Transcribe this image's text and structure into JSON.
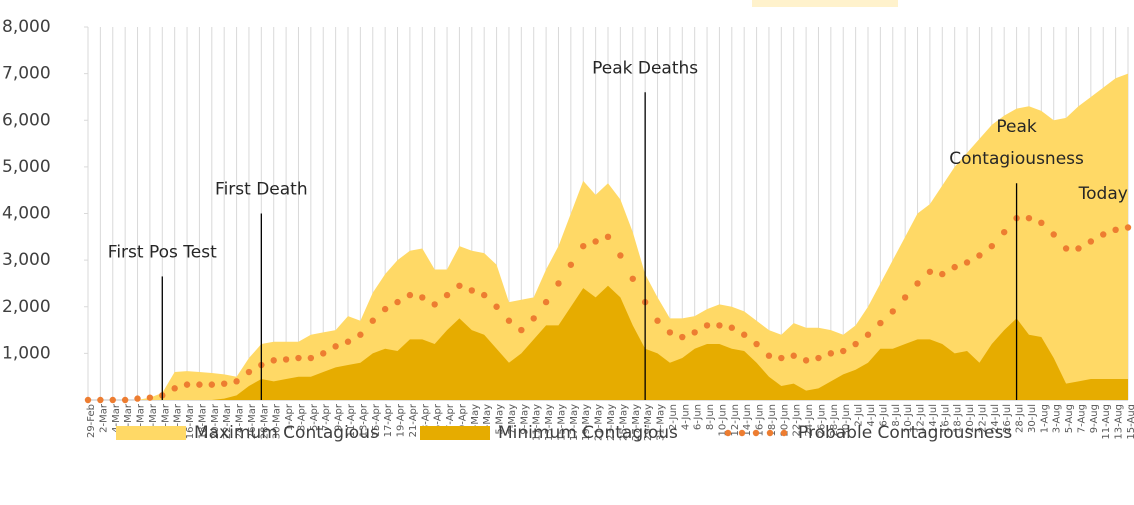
{
  "chart_data": {
    "type": "area",
    "categories": [
      "29-Feb",
      "2-Mar",
      "4-Mar",
      "6-Mar",
      "8-Mar",
      "10-Mar",
      "12-Mar",
      "14-Mar",
      "16-Mar",
      "18-Mar",
      "20-Mar",
      "22-Mar",
      "24-Mar",
      "26-Mar",
      "28-Mar",
      "30-Mar",
      "1-Apr",
      "3-Apr",
      "5-Apr",
      "7-Apr",
      "9-Apr",
      "11-Apr",
      "13-Apr",
      "15-Apr",
      "17-Apr",
      "19-Apr",
      "21-Apr",
      "23-Apr",
      "25-Apr",
      "27-Apr",
      "29-Apr",
      "1-May",
      "3-May",
      "5-May",
      "7-May",
      "9-May",
      "11-May",
      "13-May",
      "15-May",
      "17-May",
      "19-May",
      "21-May",
      "23-May",
      "25-May",
      "27-May",
      "29-May",
      "31-May",
      "2-Jun",
      "4-Jun",
      "6-Jun",
      "8-Jun",
      "10-Jun",
      "12-Jun",
      "14-Jun",
      "16-Jun",
      "18-Jun",
      "20-Jun",
      "22-Jun",
      "24-Jun",
      "26-Jun",
      "28-Jun",
      "30-Jun",
      "2-Jul",
      "4-Jul",
      "6-Jul",
      "8-Jul",
      "10-Jul",
      "12-Jul",
      "14-Jul",
      "16-Jul",
      "18-Jul",
      "20-Jul",
      "22-Jul",
      "24-Jul",
      "26-Jul",
      "28-Jul",
      "30-Jul",
      "1-Aug",
      "3-Aug",
      "5-Aug",
      "7-Aug",
      "9-Aug",
      "11-Aug",
      "13-Aug",
      "15-Aug"
    ],
    "series": [
      {
        "name": "Maximum Contagious",
        "style": "area",
        "color": "#ffd966",
        "values": [
          0,
          0,
          0,
          0,
          0,
          50,
          150,
          600,
          620,
          600,
          580,
          550,
          500,
          900,
          1200,
          1250,
          1250,
          1250,
          1400,
          1450,
          1500,
          1800,
          1700,
          2300,
          2700,
          3000,
          3200,
          3250,
          2800,
          2800,
          3300,
          3200,
          3150,
          2900,
          2100,
          2150,
          2200,
          2800,
          3300,
          4000,
          4700,
          4400,
          4650,
          4300,
          3600,
          2700,
          2200,
          1750,
          1750,
          1800,
          1950,
          2050,
          2000,
          1900,
          1700,
          1500,
          1400,
          1650,
          1550,
          1550,
          1500,
          1400,
          1600,
          2000,
          2500,
          3000,
          3500,
          4000,
          4200,
          4600,
          5000,
          5300,
          5600,
          5900,
          6100,
          6250,
          6300,
          6200,
          6000,
          6050,
          6300,
          6500,
          6700,
          6900,
          7000
        ]
      },
      {
        "name": "Minimum Contagious",
        "style": "area",
        "color": "#e6ac00",
        "values": [
          0,
          0,
          0,
          0,
          0,
          0,
          0,
          0,
          0,
          0,
          0,
          30,
          100,
          300,
          450,
          400,
          450,
          500,
          500,
          600,
          700,
          750,
          800,
          1000,
          1100,
          1050,
          1300,
          1300,
          1200,
          1500,
          1750,
          1500,
          1400,
          1100,
          800,
          1000,
          1300,
          1600,
          1600,
          2000,
          2400,
          2200,
          2450,
          2200,
          1600,
          1100,
          1000,
          800,
          900,
          1100,
          1200,
          1200,
          1100,
          1050,
          800,
          500,
          300,
          350,
          200,
          250,
          400,
          550,
          650,
          800,
          1100,
          1100,
          1200,
          1300,
          1300,
          1200,
          1000,
          1050,
          800,
          1200,
          1500,
          1750,
          1400,
          1350,
          900,
          350,
          400,
          450,
          450,
          450,
          450
        ]
      },
      {
        "name": "Probable Contagiousness",
        "style": "dots",
        "color": "#ed7d31",
        "values": [
          0,
          0,
          0,
          0,
          30,
          50,
          100,
          250,
          330,
          330,
          330,
          350,
          400,
          600,
          750,
          850,
          870,
          900,
          900,
          1000,
          1150,
          1250,
          1400,
          1700,
          1950,
          2100,
          2250,
          2200,
          2050,
          2250,
          2450,
          2350,
          2250,
          2000,
          1700,
          1500,
          1750,
          2100,
          2500,
          2900,
          3300,
          3400,
          3500,
          3100,
          2600,
          2100,
          1700,
          1450,
          1350,
          1450,
          1600,
          1600,
          1550,
          1400,
          1200,
          950,
          900,
          950,
          850,
          900,
          1000,
          1050,
          1200,
          1400,
          1650,
          1900,
          2200,
          2500,
          2750,
          2700,
          2850,
          2950,
          3100,
          3300,
          3600,
          3900,
          3900,
          3800,
          3550,
          3250,
          3250,
          3400,
          3550,
          3650,
          3700
        ]
      }
    ],
    "ylim": [
      0,
      8000
    ],
    "yticks": [
      {
        "value": 1000,
        "label": "1,000"
      },
      {
        "value": 2000,
        "label": "2,000"
      },
      {
        "value": 3000,
        "label": "3,000"
      },
      {
        "value": 4000,
        "label": "4,000"
      },
      {
        "value": 5000,
        "label": "5,000"
      },
      {
        "value": 6000,
        "label": "6,000"
      },
      {
        "value": 7000,
        "label": "7,000"
      },
      {
        "value": 8000,
        "label": "8,000"
      }
    ],
    "grid": "x",
    "legend": "bottom",
    "annotations": [
      {
        "lines": [
          "First Pos Test"
        ],
        "x": "12-Mar",
        "y": 2650,
        "line": true
      },
      {
        "lines": [
          "First Death"
        ],
        "x": "28-Mar",
        "y": 4000,
        "line": true
      },
      {
        "lines": [
          "Peak Deaths"
        ],
        "x": "29-May",
        "y": 6600,
        "line": true
      },
      {
        "lines": [
          "Peak",
          "Contagiousness"
        ],
        "x": "28-Jul",
        "y": 4650,
        "line": true
      },
      {
        "lines": [
          "Today"
        ],
        "x": "11-Aug",
        "y": 3900,
        "line": false
      }
    ]
  }
}
